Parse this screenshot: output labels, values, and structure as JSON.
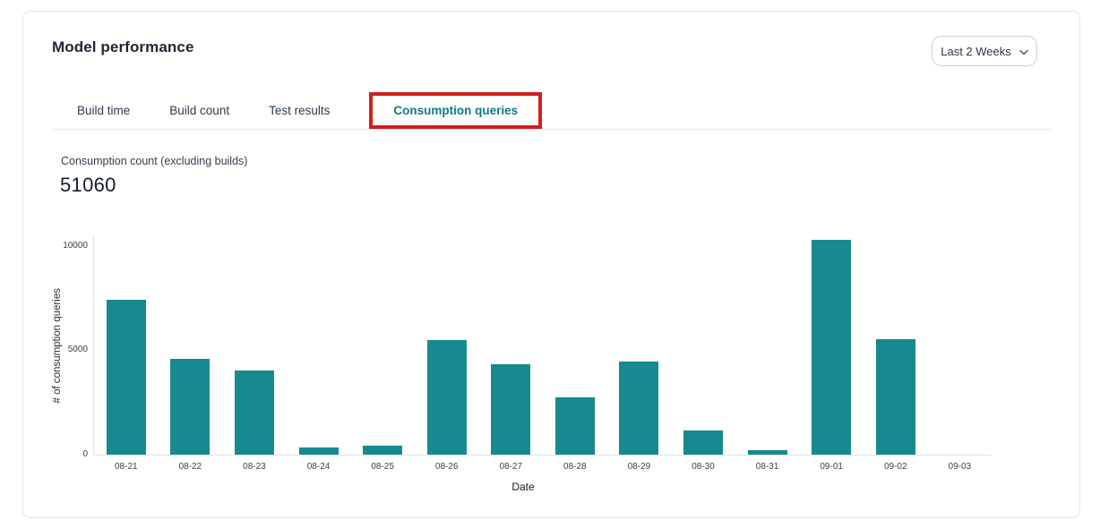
{
  "header": {
    "title": "Model performance",
    "date_range": {
      "label": "Last 2 Weeks",
      "icon": "chevron-down-icon"
    }
  },
  "tabs": [
    {
      "label": "Build time",
      "active": false
    },
    {
      "label": "Build count",
      "active": false
    },
    {
      "label": "Test results",
      "active": false
    },
    {
      "label": "Consumption queries",
      "active": true,
      "annotated": true
    }
  ],
  "annotation": {
    "type": "red-highlight-box",
    "color": "#d21f1f",
    "target": "Consumption queries tab"
  },
  "metric": {
    "label": "Consumption count (excluding builds)",
    "value": "51060"
  },
  "chart_data": {
    "type": "bar",
    "title": "",
    "categories": [
      "08-21",
      "08-22",
      "08-23",
      "08-24",
      "08-25",
      "08-26",
      "08-27",
      "08-28",
      "08-29",
      "08-30",
      "08-31",
      "09-01",
      "09-02",
      "09-03"
    ],
    "values": [
      7400,
      4600,
      4050,
      330,
      440,
      5480,
      4350,
      2730,
      4460,
      1140,
      230,
      10300,
      5550,
      0
    ],
    "xlabel": "Date",
    "ylabel": "# of consumption queries",
    "yticks": [
      0,
      5000,
      10000
    ],
    "ylim": [
      0,
      10540
    ],
    "bar_color": "#178a8f",
    "grid": false,
    "legend": "none"
  },
  "colors": {
    "bar_teal": "#178a8f",
    "active_tab_teal": "#0f7b84",
    "annotation_red": "#d21f1f",
    "card_border": "#e4e5ee",
    "axis_line": "#e3e4e8",
    "text_dark": "#1e2733",
    "text_muted": "#38424e"
  }
}
